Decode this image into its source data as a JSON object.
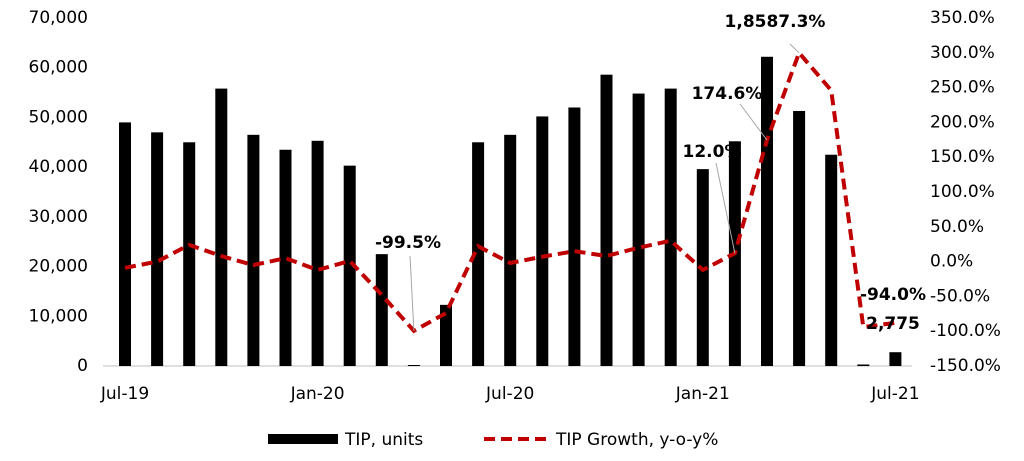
{
  "chart_data": {
    "type": "bar_line",
    "categories": [
      "Jul-19",
      null,
      null,
      null,
      null,
      null,
      "Jan-20",
      null,
      null,
      null,
      null,
      null,
      "Jul-20",
      null,
      null,
      null,
      null,
      null,
      "Jan-21",
      null,
      null,
      null,
      null,
      null,
      "Jul-21"
    ],
    "series": [
      {
        "name": "TIP, units",
        "color": "#000000",
        "type": "bar",
        "values": [
          49000,
          47000,
          45000,
          55800,
          46500,
          43500,
          45300,
          40300,
          22500,
          200,
          12300,
          45000,
          46500,
          50200,
          52000,
          58600,
          54800,
          55800,
          39600,
          45200,
          62200,
          51300,
          42500,
          300,
          2775
        ]
      },
      {
        "name": "TIP Growth, y-o-y%",
        "color": "#c00000",
        "type": "line",
        "axis": "y2",
        "values": [
          -9,
          0,
          24,
          8,
          -5,
          5,
          -12,
          1,
          -48,
          -99.5,
          -74,
          22,
          -2,
          7,
          15,
          8,
          20,
          30,
          -12,
          12.0,
          174.6,
          300,
          246,
          -94.0,
          -88
        ]
      }
    ],
    "ylim": [
      0,
      70000
    ],
    "yticks": [
      0,
      {
        "value": 10000,
        "label": "10,000"
      },
      {
        "value": 20000,
        "label": "20,000"
      },
      {
        "value": 30000,
        "label": "30,000"
      },
      {
        "value": 40000,
        "label": "40,000"
      },
      {
        "value": 50000,
        "label": "50,000"
      },
      {
        "value": 60000,
        "label": "60,000"
      },
      {
        "value": 70000,
        "label": "70,000"
      }
    ],
    "y2lim": [
      -150,
      350
    ],
    "y2ticks": [
      {
        "value": -150,
        "label": "-150.0%"
      },
      {
        "value": -100,
        "label": "-100.0%"
      },
      {
        "value": -50,
        "label": "-50.0%"
      },
      {
        "value": 0,
        "label": "0.0%"
      },
      {
        "value": 50,
        "label": "50.0%"
      },
      {
        "value": 100,
        "label": "100.0%"
      },
      {
        "value": 150,
        "label": "150.0%"
      },
      {
        "value": 200,
        "label": "200.0%"
      },
      {
        "value": 250,
        "label": "250.0%"
      },
      {
        "value": 300,
        "label": "300.0%"
      },
      {
        "value": 350,
        "label": "350.0%"
      }
    ],
    "annotations": [
      "-99.5%",
      "12.0%",
      "174.6%",
      "1,8587.3%",
      "-94.0%",
      "2,775"
    ],
    "legend": "bottom"
  }
}
